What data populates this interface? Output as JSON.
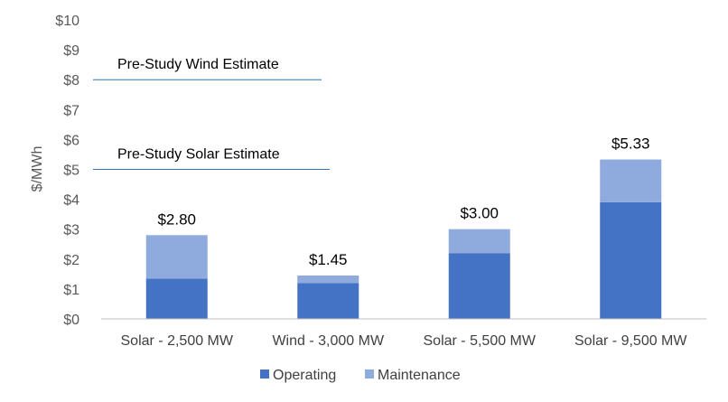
{
  "chart_data": {
    "type": "bar",
    "stacked": true,
    "title": "",
    "xlabel": "",
    "ylabel": "$/MWh",
    "ylim": [
      0,
      10
    ],
    "y_tick_labels": [
      "$0",
      "$1",
      "$2",
      "$3",
      "$4",
      "$5",
      "$6",
      "$7",
      "$8",
      "$9",
      "$10"
    ],
    "grid": false,
    "legend_position": "bottom",
    "categories": [
      "Solar - 2,500 MW",
      "Wind - 3,000 MW",
      "Solar - 5,500 MW",
      "Solar - 9,500 MW"
    ],
    "series": [
      {
        "name": "Operating",
        "color": "#4472C4",
        "values": [
          1.35,
          1.2,
          2.2,
          3.9
        ]
      },
      {
        "name": "Maintenance",
        "color": "#8FAADC",
        "values": [
          1.45,
          0.25,
          0.8,
          1.43
        ]
      }
    ],
    "totals_labels": [
      "$2.80",
      "$1.45",
      "$3.00",
      "$5.33"
    ],
    "reference_lines": [
      {
        "label": "Pre-Study Wind Estimate",
        "value": 8,
        "color": "#2E75B6"
      },
      {
        "label": "Pre-Study Solar Estimate",
        "value": 5,
        "color": "#2E75B6"
      }
    ]
  }
}
